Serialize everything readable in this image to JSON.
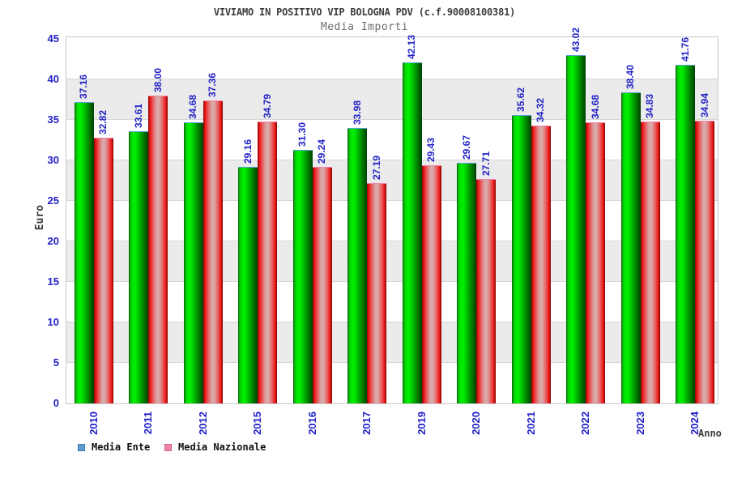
{
  "title": "VIVIAMO IN POSITIVO VIP BOLOGNA PDV (c.f.90008100381)",
  "subtitle": "Media Importi",
  "chart_data": {
    "type": "bar",
    "categories": [
      "2010",
      "2011",
      "2012",
      "2015",
      "2016",
      "2017",
      "2019",
      "2020",
      "2021",
      "2022",
      "2023",
      "2024"
    ],
    "series": [
      {
        "name": "Media Ente",
        "legend_color": "#5e9ad0",
        "legend_border": "#3f7db8",
        "values": [
          37.16,
          33.61,
          34.68,
          29.16,
          31.3,
          33.98,
          42.13,
          29.67,
          35.62,
          43.02,
          38.4,
          41.76
        ]
      },
      {
        "name": "Media Nazionale",
        "legend_color": "#ee82ae",
        "legend_border": "#d0608e",
        "values": [
          32.82,
          38.0,
          37.36,
          34.79,
          29.24,
          27.19,
          29.43,
          27.71,
          34.32,
          34.68,
          34.83,
          34.94
        ]
      }
    ],
    "xlabel": "Anno",
    "ylabel": "Euro",
    "ylim": [
      0,
      45
    ],
    "ytick_step": 5,
    "grid": true,
    "legend_position": "bottom-left",
    "value_label_color": "#2222c8",
    "tick_label_color": "#2222c8",
    "band_color": "#ebebeb"
  }
}
